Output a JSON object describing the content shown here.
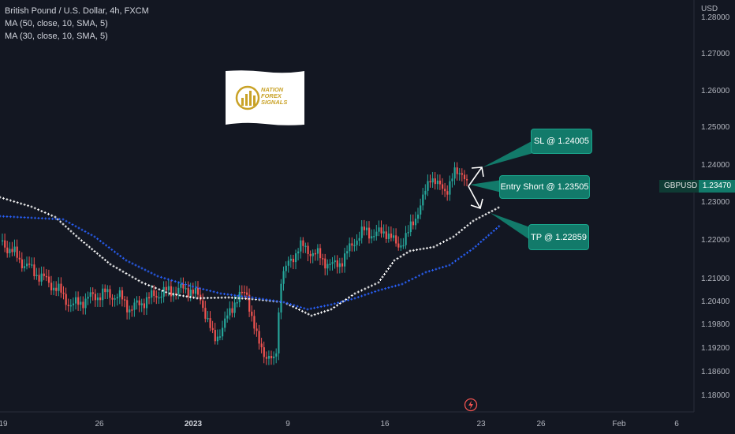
{
  "legend": {
    "title": "British Pound / U.S. Dollar, 4h, FXCM",
    "ma50": "MA (50, close, 10, SMA, 5)",
    "ma30": "MA (30, close, 10, SMA, 5)"
  },
  "logo": {
    "text": "NATION FOREX SIGNALS"
  },
  "callouts": {
    "sl": "SL @ 1.24005",
    "entry": "Entry Short @ 1.23505",
    "tp": "TP @ 1.22859"
  },
  "price_axis": {
    "currency": "USD",
    "labels": [
      "1.28000",
      "1.27000",
      "1.26000",
      "1.25000",
      "1.24000",
      "1.23000",
      "1.22000",
      "1.21000",
      "1.20400",
      "1.19800",
      "1.19200",
      "1.18600",
      "1.18000"
    ]
  },
  "symbol_tag": {
    "symbol": "GBPUSD",
    "price": "1.23470"
  },
  "time_axis": {
    "labels": [
      "19",
      "26",
      "2023",
      "9",
      "16",
      "23",
      "26",
      "Feb",
      "6"
    ]
  },
  "colors": {
    "background": "#131722",
    "bull": "#26a69a",
    "bear": "#ef5350",
    "ma50": "#ffffff",
    "ma30": "#2962ff",
    "callout": "#127a6a"
  },
  "icons": {
    "lightning": "lightning-icon"
  }
}
